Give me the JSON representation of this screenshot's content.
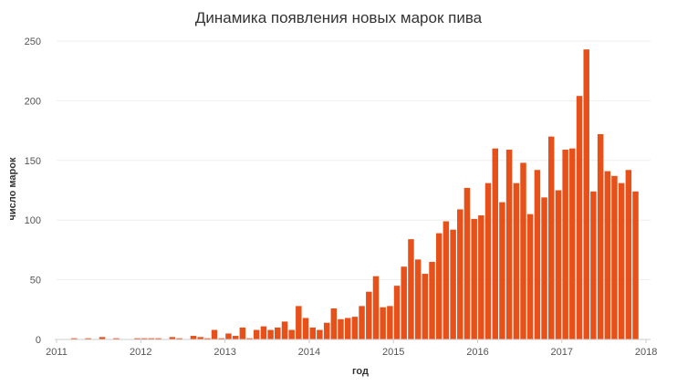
{
  "chart_data": {
    "type": "bar",
    "title": "Динамика появления новых марок пива",
    "xlabel": "год",
    "ylabel": "число марок",
    "x_ticks": [
      "2011",
      "2012",
      "2013",
      "2014",
      "2015",
      "2016",
      "2017",
      "2018"
    ],
    "y_ticks": [
      "0",
      "50",
      "100",
      "150",
      "200",
      "250"
    ],
    "xlim": [
      2011.0,
      2018.0
    ],
    "ylim": [
      0,
      250
    ],
    "bar_color": "#e8501a",
    "grid": true,
    "series": [
      {
        "x": [
          2011.0,
          2011.083,
          2011.167,
          2011.25,
          2011.333,
          2011.417,
          2011.5,
          2011.583,
          2011.667,
          2011.75,
          2011.833,
          2011.917,
          2012.0,
          2012.083,
          2012.167,
          2012.25,
          2012.333,
          2012.417,
          2012.5,
          2012.583,
          2012.667,
          2012.75,
          2012.833,
          2012.917,
          2013.0,
          2013.083,
          2013.167,
          2013.25,
          2013.333,
          2013.417,
          2013.5,
          2013.583,
          2013.667,
          2013.75,
          2013.833,
          2013.917,
          2014.0,
          2014.083,
          2014.167,
          2014.25,
          2014.333,
          2014.417,
          2014.5,
          2014.583,
          2014.667,
          2014.75,
          2014.833,
          2014.917,
          2015.0,
          2015.083,
          2015.167,
          2015.25,
          2015.333,
          2015.417,
          2015.5,
          2015.583,
          2015.667,
          2015.75,
          2015.833,
          2015.917,
          2016.0,
          2016.083,
          2016.167,
          2016.25,
          2016.333,
          2016.417,
          2016.5,
          2016.583,
          2016.667,
          2016.75,
          2016.833,
          2016.917,
          2017.0,
          2017.083,
          2017.167,
          2017.25,
          2017.333,
          2017.417,
          2017.5,
          2017.583,
          2017.667,
          2017.75,
          2017.833,
          2017.917
        ],
        "values": [
          0,
          0,
          1,
          0,
          1,
          0,
          2,
          0,
          1,
          0,
          0,
          1,
          1,
          1,
          1,
          0,
          2,
          1,
          0,
          3,
          2,
          1,
          8,
          1,
          5,
          3,
          10,
          1,
          8,
          11,
          8,
          10,
          15,
          8,
          28,
          18,
          10,
          8,
          14,
          26,
          17,
          18,
          19,
          28,
          40,
          53,
          27,
          28,
          45,
          61,
          84,
          67,
          55,
          65,
          89,
          99,
          92,
          109,
          127,
          101,
          104,
          131,
          160,
          115,
          159,
          131,
          148,
          105,
          142,
          119,
          170,
          125,
          159,
          160,
          204,
          243,
          124,
          172,
          141,
          137,
          131,
          142,
          124,
          0
        ]
      }
    ]
  }
}
